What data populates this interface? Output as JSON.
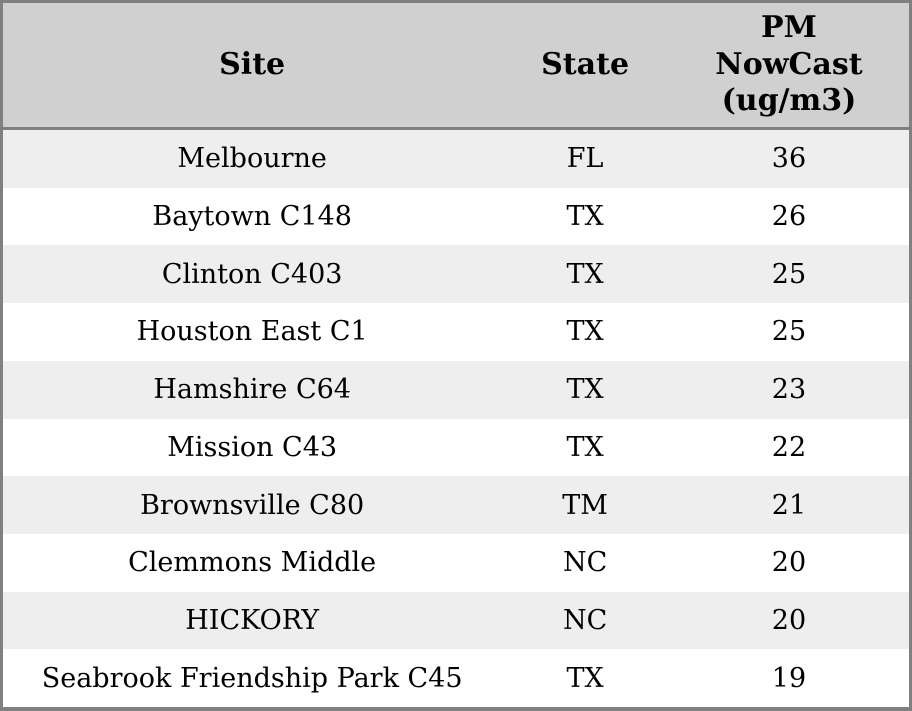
{
  "colors": {
    "header_bg": "#d0d0d0",
    "row_stripe_bg": "#eeeeee",
    "row_bg": "#ffffff",
    "border": "#808080",
    "text": "#000000"
  },
  "table": {
    "columns": [
      {
        "label": "Site"
      },
      {
        "label": "State"
      },
      {
        "label": "PM\nNowCast\n(ug/m3)"
      }
    ],
    "rows": [
      {
        "site": "Melbourne",
        "state": "FL",
        "pm": "36"
      },
      {
        "site": "Baytown C148",
        "state": "TX",
        "pm": "26"
      },
      {
        "site": "Clinton C403",
        "state": "TX",
        "pm": "25"
      },
      {
        "site": "Houston East C1",
        "state": "TX",
        "pm": "25"
      },
      {
        "site": "Hamshire C64",
        "state": "TX",
        "pm": "23"
      },
      {
        "site": "Mission C43",
        "state": "TX",
        "pm": "22"
      },
      {
        "site": "Brownsville C80",
        "state": "TM",
        "pm": "21"
      },
      {
        "site": "Clemmons Middle",
        "state": "NC",
        "pm": "20"
      },
      {
        "site": "HICKORY",
        "state": "NC",
        "pm": "20"
      },
      {
        "site": "Seabrook Friendship Park C45",
        "state": "TX",
        "pm": "19"
      }
    ]
  },
  "chart_data": {
    "type": "table",
    "title": "",
    "columns": [
      "Site",
      "State",
      "PM NowCast (ug/m3)"
    ],
    "rows": [
      [
        "Melbourne",
        "FL",
        36
      ],
      [
        "Baytown C148",
        "TX",
        26
      ],
      [
        "Clinton C403",
        "TX",
        25
      ],
      [
        "Houston East C1",
        "TX",
        25
      ],
      [
        "Hamshire C64",
        "TX",
        23
      ],
      [
        "Mission C43",
        "TX",
        22
      ],
      [
        "Brownsville C80",
        "TM",
        21
      ],
      [
        "Clemmons Middle",
        "NC",
        20
      ],
      [
        "HICKORY",
        "NC",
        20
      ],
      [
        "Seabrook Friendship Park C45",
        "TX",
        19
      ]
    ],
    "layout": {
      "header_style": "bold serif on gray background",
      "row_striping": "alternating light-gray/white starting with light-gray",
      "alignment": "all columns centered",
      "grid": "outer border and header divider only, no inner cell borders"
    }
  }
}
